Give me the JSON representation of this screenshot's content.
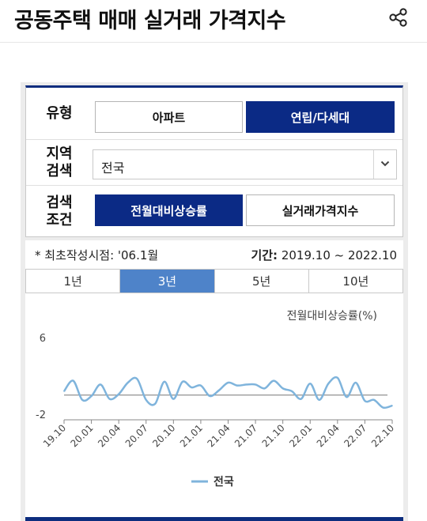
{
  "header": {
    "title": "공동주택 매매 실거래 가격지수",
    "share_icon": "share-icon"
  },
  "filters": {
    "type": {
      "label": "유형",
      "options": [
        "아파트",
        "연립/다세대"
      ],
      "selected": "연립/다세대"
    },
    "region": {
      "label": "지역\n검색",
      "value": "전국",
      "arrow_icon": "chevron-down-icon"
    },
    "condition": {
      "label": "검색\n조건",
      "options": [
        "전월대비상승률",
        "실거래가격지수"
      ],
      "selected": "전월대비상승률"
    }
  },
  "info": {
    "first_date": "* 최초작성시점: '06.1월",
    "period_label": "기간:",
    "period_value": "2019.10 ~ 2022.10"
  },
  "tabs": {
    "items": [
      "1년",
      "3년",
      "5년",
      "10년"
    ],
    "selected": "3년"
  },
  "colors": {
    "accent": "#0b2a85",
    "tab_active": "#4e83c9",
    "series": "#7fb4dc"
  },
  "chart_data": {
    "type": "line",
    "ylabel": "전월대비상승률(%)",
    "yticks": [
      6,
      -2
    ],
    "ylim": [
      -2,
      6
    ],
    "xticks": [
      "19.10",
      "20.01",
      "20.04",
      "20.07",
      "20.10",
      "21.01",
      "21.04",
      "21.07",
      "21.10",
      "22.01",
      "22.04",
      "22.07",
      "22.10"
    ],
    "legend": {
      "position": "bottom"
    },
    "series": [
      {
        "name": "전국",
        "x": [
          "19.10",
          "19.11",
          "19.12",
          "20.01",
          "20.02",
          "20.03",
          "20.04",
          "20.05",
          "20.06",
          "20.07",
          "20.08",
          "20.09",
          "20.10",
          "20.11",
          "20.12",
          "21.01",
          "21.02",
          "21.03",
          "21.04",
          "21.05",
          "21.06",
          "21.07",
          "21.08",
          "21.09",
          "21.10",
          "21.11",
          "21.12",
          "22.01",
          "22.02",
          "22.03",
          "22.04",
          "22.05",
          "22.06",
          "22.07",
          "22.08",
          "22.09",
          "22.10"
        ],
        "values": [
          0.4,
          1.5,
          -0.5,
          -0.1,
          1.1,
          -0.4,
          0.1,
          1.3,
          1.7,
          -0.5,
          -0.9,
          1.4,
          -0.4,
          1.4,
          0.8,
          1.0,
          -0.1,
          0.5,
          1.3,
          1.0,
          1.1,
          1.1,
          0.7,
          1.5,
          0.7,
          0.4,
          -0.4,
          1.2,
          -0.5,
          1.2,
          1.8,
          -0.2,
          1.3,
          -0.6,
          -0.5,
          -1.3,
          -1.1
        ]
      }
    ]
  }
}
